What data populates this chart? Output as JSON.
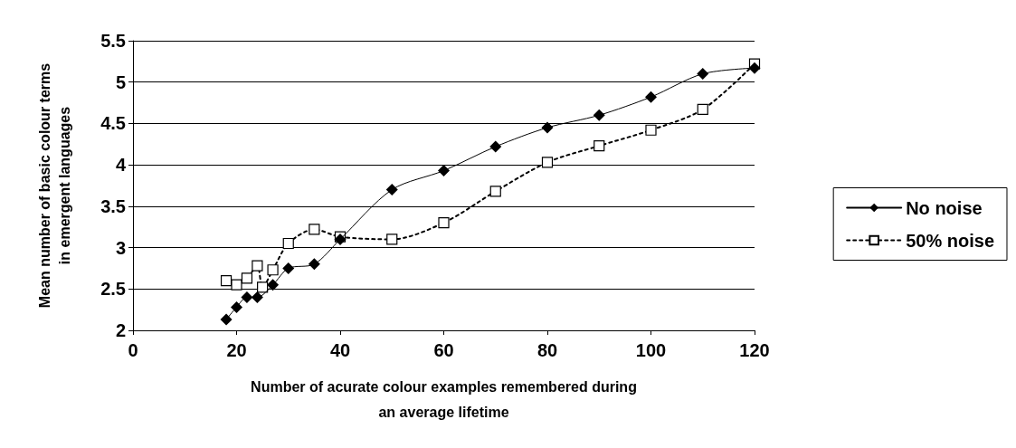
{
  "chart_data": {
    "type": "line",
    "xlabel": "Number of acurate colour examples remembered during\nan average lifetime",
    "ylabel": "Mean number of basic colour terms\nin emergent languages",
    "xlim": [
      0,
      120
    ],
    "xticks": [
      0,
      20,
      40,
      60,
      80,
      100,
      120
    ],
    "ylim": [
      2,
      5.5
    ],
    "yticks": [
      2,
      2.5,
      3,
      3.5,
      4,
      4.5,
      5,
      5.5
    ],
    "grid": "y",
    "legend": "right",
    "series": [
      {
        "name": "No noise",
        "color": "#000000",
        "marker": "diamond",
        "line_style": "solid",
        "x": [
          18,
          20,
          22,
          24,
          27,
          30,
          35,
          40,
          50,
          60,
          70,
          80,
          90,
          100,
          110,
          120
        ],
        "values": [
          2.13,
          2.28,
          2.4,
          2.4,
          2.55,
          2.75,
          2.8,
          3.1,
          3.7,
          3.93,
          4.22,
          4.45,
          4.6,
          4.82,
          5.1,
          5.17
        ]
      },
      {
        "name": "50% noise",
        "color": "#000000",
        "marker": "square",
        "line_style": "dotted",
        "x": [
          18,
          20,
          22,
          24,
          25,
          27,
          30,
          35,
          40,
          50,
          60,
          70,
          80,
          90,
          100,
          110,
          120
        ],
        "values": [
          2.6,
          2.55,
          2.63,
          2.78,
          2.52,
          2.73,
          3.05,
          3.22,
          3.13,
          3.1,
          3.3,
          3.68,
          4.03,
          4.23,
          4.42,
          4.67,
          5.22
        ]
      }
    ]
  }
}
